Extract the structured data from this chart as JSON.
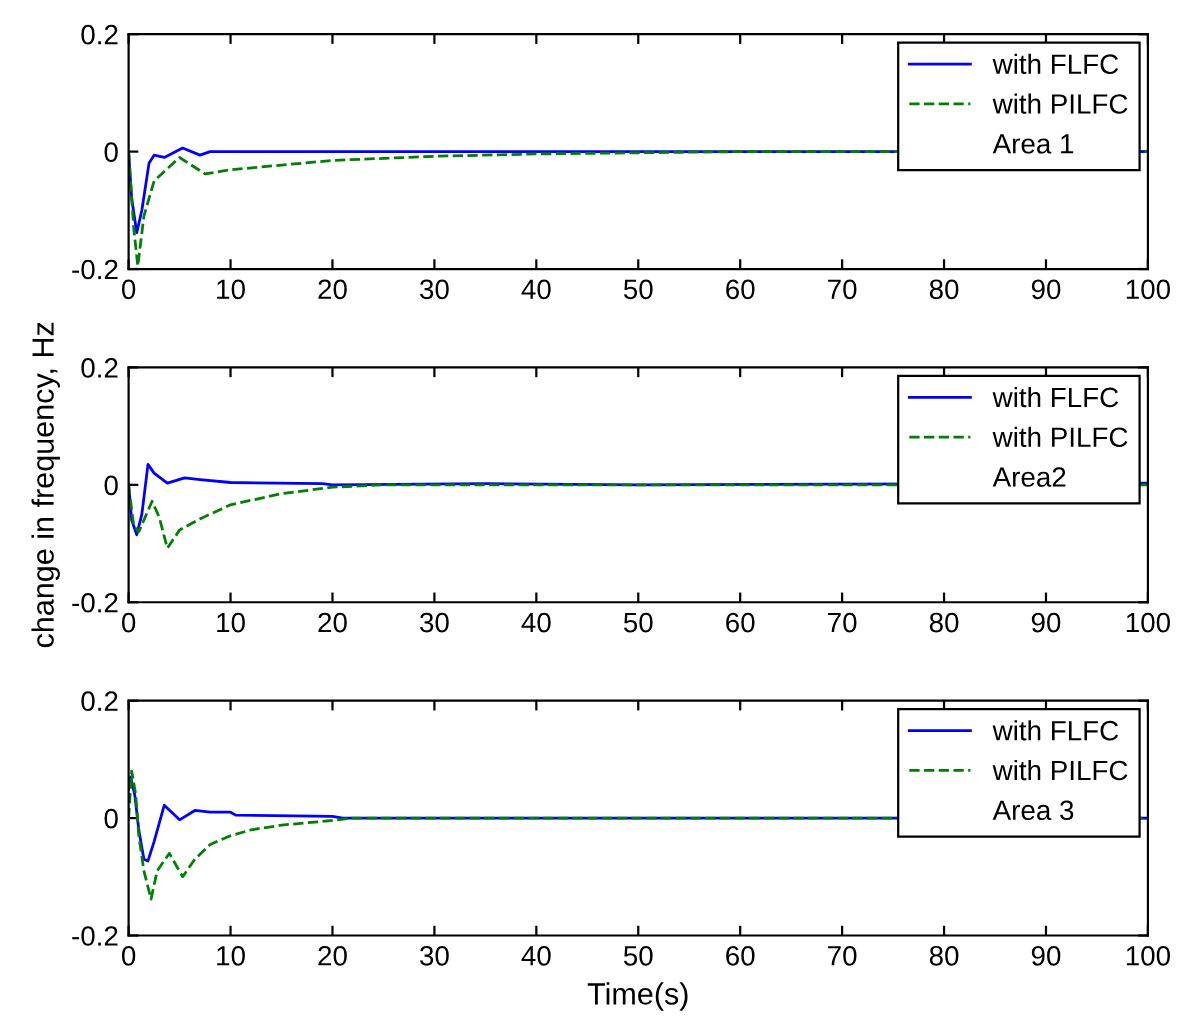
{
  "chart_data": [
    {
      "type": "line",
      "xlim": [
        0,
        100
      ],
      "ylim": [
        -0.2,
        0.2
      ],
      "xticks": [
        0,
        10,
        20,
        30,
        40,
        50,
        60,
        70,
        80,
        90,
        100
      ],
      "yticks": [
        -0.2,
        0,
        0.2
      ],
      "legend": "top right",
      "legend_title": "Area 1",
      "grid": false,
      "series": [
        {
          "name": "with FLFC",
          "color": "#0000ff",
          "line_style": "solid",
          "x": [
            0,
            0.3,
            0.8,
            1.3,
            2,
            2.5,
            3.5,
            5.3,
            7,
            8,
            100
          ],
          "values": [
            0,
            -0.08,
            -0.138,
            -0.1,
            -0.02,
            -0.006,
            -0.01,
            0.006,
            -0.006,
            0,
            0
          ]
        },
        {
          "name": "with PILFC",
          "color": "#008000",
          "line_style": "dashed",
          "x": [
            0,
            0.5,
            0.9,
            1.5,
            2.5,
            5,
            7.5,
            10,
            15,
            20,
            30,
            40,
            60,
            100
          ],
          "values": [
            0,
            -0.13,
            -0.195,
            -0.11,
            -0.05,
            -0.01,
            -0.038,
            -0.031,
            -0.023,
            -0.015,
            -0.008,
            -0.004,
            0,
            0
          ]
        }
      ]
    },
    {
      "type": "line",
      "xlim": [
        0,
        100
      ],
      "ylim": [
        -0.2,
        0.2
      ],
      "xticks": [
        0,
        10,
        20,
        30,
        40,
        50,
        60,
        70,
        80,
        90,
        100
      ],
      "yticks": [
        -0.2,
        0,
        0.2
      ],
      "legend": "top right",
      "legend_title": "Area2",
      "grid": false,
      "ylabel": "change in frequency, Hz",
      "series": [
        {
          "name": "with FLFC",
          "color": "#0000ff",
          "line_style": "solid",
          "x": [
            0,
            0.3,
            0.8,
            1.3,
            1.9,
            2.5,
            3.8,
            5.5,
            7,
            10,
            19,
            20,
            35,
            50,
            100
          ],
          "values": [
            0,
            -0.06,
            -0.085,
            -0.05,
            0.035,
            0.02,
            0.003,
            0.012,
            0.009,
            0.004,
            0.002,
            0,
            0.002,
            0,
            0.003
          ]
        },
        {
          "name": "with PILFC",
          "color": "#008000",
          "line_style": "dashed",
          "x": [
            0,
            0.5,
            1,
            2.3,
            3,
            3.8,
            5,
            7,
            10,
            15,
            20,
            25,
            100
          ],
          "values": [
            0,
            -0.07,
            -0.08,
            -0.028,
            -0.055,
            -0.108,
            -0.077,
            -0.058,
            -0.034,
            -0.015,
            -0.004,
            0,
            0
          ]
        }
      ]
    },
    {
      "type": "line",
      "xlim": [
        0,
        100
      ],
      "ylim": [
        -0.2,
        0.2
      ],
      "xticks": [
        0,
        10,
        20,
        30,
        40,
        50,
        60,
        70,
        80,
        90,
        100
      ],
      "yticks": [
        -0.2,
        0,
        0.2
      ],
      "legend": "top right",
      "legend_title": "Area 3",
      "grid": false,
      "xlabel": "Time(s)",
      "series": [
        {
          "name": "with FLFC",
          "color": "#0000ff",
          "line_style": "solid",
          "x": [
            0,
            0.2,
            0.6,
            1,
            1.5,
            1.9,
            2.5,
            3.5,
            5,
            6.5,
            8,
            10,
            10.5,
            20,
            21,
            100
          ],
          "values": [
            0.05,
            0.07,
            0.04,
            -0.02,
            -0.07,
            -0.073,
            -0.04,
            0.022,
            -0.003,
            0.013,
            0.01,
            0.01,
            0.005,
            0.003,
            0,
            0
          ]
        },
        {
          "name": "with PILFC",
          "color": "#008000",
          "line_style": "dashed",
          "x": [
            0,
            0.3,
            0.7,
            1,
            1.5,
            2.2,
            2.8,
            4,
            5.3,
            6.5,
            8,
            10,
            12,
            15,
            20,
            22,
            100
          ],
          "values": [
            0,
            0.08,
            0.04,
            -0.03,
            -0.09,
            -0.138,
            -0.09,
            -0.06,
            -0.1,
            -0.07,
            -0.045,
            -0.03,
            -0.02,
            -0.012,
            -0.004,
            0,
            0
          ]
        }
      ]
    }
  ]
}
